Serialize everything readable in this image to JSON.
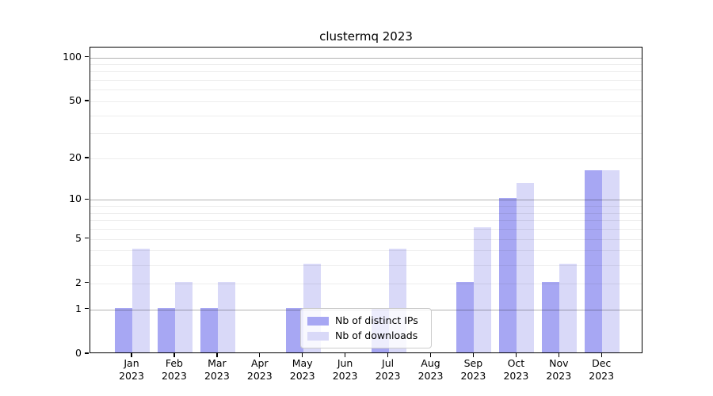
{
  "figure": {
    "title": "clustermq 2023"
  },
  "colors": {
    "distinct_ips_bar": "#a7a7f3",
    "downloads_bar": "#d9d9f8",
    "grid_major": "rgba(0,0,0,0.30)",
    "grid_minor": "rgba(0,0,0,0.07)",
    "axis": "#000000",
    "legend_border": "#cccccc"
  },
  "chart_data": {
    "type": "bar",
    "title": "clustermq 2023",
    "categories": [
      "Jan 2023",
      "Feb 2023",
      "Mar 2023",
      "Apr 2023",
      "May 2023",
      "Jun 2023",
      "Jul 2023",
      "Aug 2023",
      "Sep 2023",
      "Oct 2023",
      "Nov 2023",
      "Dec 2023"
    ],
    "months": [
      "Jan",
      "Feb",
      "Mar",
      "Apr",
      "May",
      "Jun",
      "Jul",
      "Aug",
      "Sep",
      "Oct",
      "Nov",
      "Dec"
    ],
    "year": "2023",
    "series": [
      {
        "name": "Nb of distinct IPs",
        "color": "#a7a7f3",
        "values": [
          1,
          1,
          1,
          0,
          1,
          0,
          1,
          0,
          2,
          10,
          2,
          16
        ]
      },
      {
        "name": "Nb of downloads",
        "color": "#d9d9f8",
        "values": [
          4,
          2,
          2,
          0,
          3,
          0,
          4,
          0,
          6,
          13,
          3,
          16
        ]
      }
    ],
    "xlabel": "",
    "ylabel": "",
    "yscale": "log1p",
    "ylim": [
      0,
      115
    ],
    "yticks": [
      0,
      1,
      2,
      5,
      10,
      20,
      50,
      100
    ],
    "minor_gridlines": [
      2,
      3,
      4,
      5,
      6,
      7,
      8,
      9,
      20,
      30,
      40,
      50,
      60,
      70,
      80,
      90
    ],
    "major_gridlines": [
      1,
      10,
      100
    ],
    "grid": true,
    "grid_above_bars": true,
    "legend_position": "lower center (inside plot)"
  }
}
